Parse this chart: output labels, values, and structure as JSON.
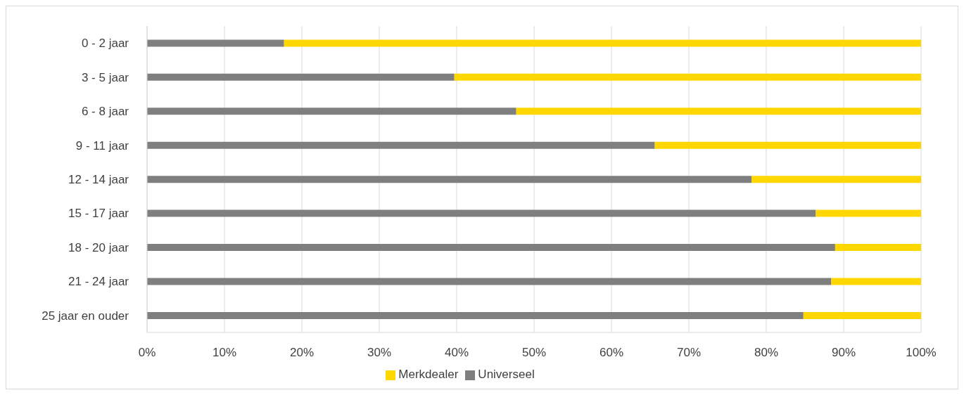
{
  "chart_data": {
    "type": "bar",
    "orientation": "horizontal",
    "stacked": true,
    "categories": [
      "0 - 2 jaar",
      "3 - 5 jaar",
      "6 - 8 jaar",
      "9 - 11 jaar",
      "12 - 14 jaar",
      "15 - 17 jaar",
      "18 - 20 jaar",
      "21 - 24 jaar",
      "25 jaar en ouder"
    ],
    "series": [
      {
        "name": "Universeel",
        "color": "#7f7f7f",
        "values": [
          17.7,
          39.7,
          47.7,
          65.6,
          78.1,
          86.4,
          88.9,
          88.4,
          84.8
        ]
      },
      {
        "name": "Merkdealer",
        "color": "#ffd700",
        "values": [
          82.3,
          60.3,
          52.3,
          34.4,
          21.9,
          13.6,
          11.1,
          11.6,
          15.2
        ]
      }
    ],
    "xlim": [
      0,
      100
    ],
    "xticks": [
      {
        "value": 0,
        "label": "0%"
      },
      {
        "value": 10,
        "label": "10%"
      },
      {
        "value": 20,
        "label": "20%"
      },
      {
        "value": 30,
        "label": "30%"
      },
      {
        "value": 40,
        "label": "40%"
      },
      {
        "value": 50,
        "label": "50%"
      },
      {
        "value": 60,
        "label": "60%"
      },
      {
        "value": 70,
        "label": "70%"
      },
      {
        "value": 80,
        "label": "80%"
      },
      {
        "value": 90,
        "label": "90%"
      },
      {
        "value": 100,
        "label": "100%"
      }
    ],
    "grid": "x",
    "legend": "bottom"
  }
}
